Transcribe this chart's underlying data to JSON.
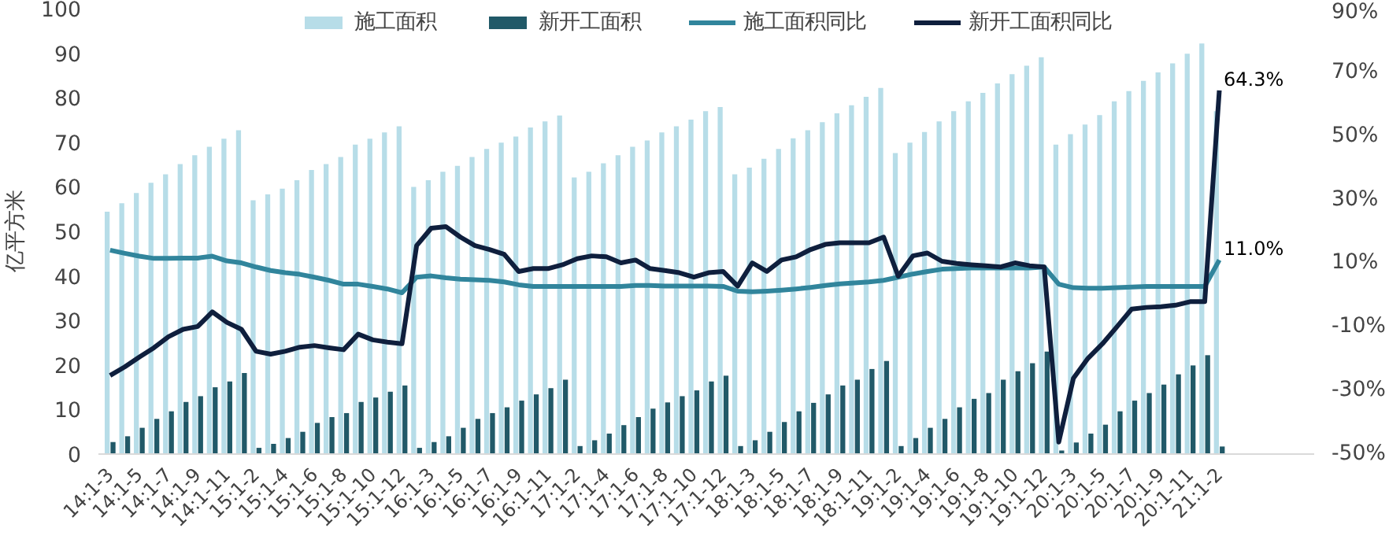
{
  "chart_data": {
    "type": "bar",
    "ylabel": "亿平方米",
    "categories": [
      "14:1-3",
      null,
      "14:1-5",
      null,
      "14:1-7",
      null,
      "14:1-9",
      null,
      "14:1-11",
      null,
      "15:1-2",
      null,
      "15:1-4",
      null,
      "15:1-6",
      null,
      "15:1-8",
      null,
      "15:1-10",
      null,
      "15:1-12",
      null,
      "16:1-3",
      null,
      "16:1-5",
      null,
      "16:1-7",
      null,
      "16:1-9",
      null,
      "16:1-11",
      null,
      "17:1-2",
      null,
      "17:1-4",
      null,
      "17:1-6",
      null,
      "17:1-8",
      null,
      "17:1-10",
      null,
      "17:1-12",
      null,
      "18:1-3",
      null,
      "18:1-5",
      null,
      "18:1-7",
      null,
      "18:1-9",
      null,
      "18:1-11",
      null,
      "19:1-2",
      null,
      "19:1-4",
      null,
      "19:1-6",
      null,
      "19:1-8",
      null,
      "19:1-10",
      null,
      "19:1-12",
      null,
      "20:1-3",
      null,
      "20:1-5",
      null,
      "20:1-7",
      null,
      "20:1-9",
      null,
      "20:1-11",
      null,
      "21:1-2"
    ],
    "series": [
      {
        "name": "施工面积",
        "color": "#b7dde8",
        "values": [
          54.4,
          56.3,
          58.6,
          60.9,
          62.8,
          65.1,
          67.1,
          69.0,
          70.8,
          72.7,
          57.0,
          58.3,
          59.6,
          61.5,
          63.8,
          65.1,
          66.7,
          69.5,
          70.8,
          72.2,
          73.6,
          60.0,
          61.5,
          63.4,
          64.7,
          66.7,
          68.5,
          69.9,
          71.3,
          73.3,
          74.7,
          76.0,
          62.1,
          63.4,
          65.3,
          67.1,
          69.0,
          70.4,
          72.2,
          73.6,
          75.1,
          77.0,
          77.9,
          62.8,
          64.3,
          66.3,
          68.5,
          70.9,
          72.7,
          74.5,
          76.5,
          78.3,
          80.2,
          82.2,
          67.6,
          69.9,
          72.3,
          74.7,
          77.0,
          79.2,
          81.1,
          83.2,
          85.3,
          87.2,
          89.1,
          69.5,
          71.8,
          74.0,
          76.1,
          79.2,
          81.5,
          83.8,
          85.7,
          87.7,
          89.9,
          92.2,
          77.0
        ]
      },
      {
        "name": "新开工面积",
        "color": "#215968",
        "values": [
          2.7,
          4.0,
          5.9,
          7.9,
          9.6,
          11.7,
          13.0,
          15.0,
          16.3,
          18.2,
          1.4,
          2.3,
          3.6,
          5.0,
          7.0,
          8.3,
          9.2,
          11.7,
          12.7,
          14.0,
          15.4,
          1.4,
          2.7,
          4.0,
          5.9,
          7.9,
          9.2,
          10.5,
          12.0,
          13.4,
          14.8,
          16.7,
          1.8,
          3.1,
          4.6,
          6.5,
          8.3,
          10.2,
          11.6,
          13.0,
          14.3,
          16.3,
          17.6,
          1.8,
          3.1,
          5.0,
          7.2,
          9.6,
          11.5,
          13.4,
          15.4,
          16.7,
          19.1,
          20.9,
          1.8,
          3.6,
          5.9,
          7.9,
          10.5,
          12.4,
          13.7,
          16.7,
          18.6,
          20.4,
          23.0,
          0.8,
          2.6,
          4.6,
          6.6,
          9.6,
          12.0,
          13.7,
          15.6,
          17.9,
          19.9,
          22.2,
          1.7
        ]
      },
      {
        "name": "施工面积同比",
        "type": "line",
        "axis": "y2",
        "color": "#31859c",
        "values": [
          14.1,
          13.1,
          12.2,
          11.5,
          11.5,
          11.6,
          11.6,
          12.2,
          10.7,
          10.1,
          8.8,
          7.7,
          7.0,
          6.5,
          5.6,
          4.6,
          3.4,
          3.4,
          2.7,
          1.9,
          0.7,
          5.6,
          6.0,
          5.4,
          5.0,
          4.8,
          4.6,
          4.1,
          3.2,
          2.7,
          2.7,
          2.7,
          2.7,
          2.7,
          2.7,
          2.7,
          3.0,
          3.0,
          2.8,
          2.8,
          2.8,
          2.8,
          2.7,
          1.2,
          1.0,
          1.2,
          1.5,
          1.9,
          2.4,
          3.0,
          3.5,
          3.8,
          4.1,
          4.6,
          5.6,
          6.6,
          7.4,
          8.1,
          8.3,
          8.5,
          8.5,
          8.5,
          8.5,
          8.5,
          8.8,
          3.4,
          2.3,
          2.1,
          2.1,
          2.3,
          2.5,
          2.7,
          2.7,
          2.7,
          2.7,
          2.7,
          11.0
        ],
        "value_labels": [
          null,
          null,
          null,
          null,
          null,
          null,
          null,
          null,
          null,
          null,
          null,
          null,
          null,
          null,
          null,
          null,
          null,
          null,
          null,
          null,
          null,
          null,
          null,
          null,
          null,
          null,
          null,
          null,
          null,
          null,
          null,
          null,
          null,
          null,
          null,
          null,
          null,
          null,
          null,
          null,
          null,
          null,
          null,
          null,
          null,
          null,
          null,
          null,
          null,
          null,
          null,
          null,
          null,
          null,
          null,
          null,
          null,
          null,
          null,
          null,
          null,
          null,
          null,
          null,
          null,
          null,
          null,
          null,
          null,
          null,
          null,
          null,
          null,
          null,
          null,
          null,
          "11.0%"
        ]
      },
      {
        "name": "新开工面积同比",
        "type": "line",
        "axis": "y2",
        "color": "#0f1f3d",
        "values": [
          -25.3,
          -22.6,
          -19.5,
          -16.6,
          -13.1,
          -10.8,
          -9.9,
          -5.3,
          -8.6,
          -10.8,
          -17.7,
          -18.6,
          -17.7,
          -16.4,
          -15.9,
          -16.6,
          -17.2,
          -12.3,
          -14.1,
          -14.8,
          -15.3,
          15.5,
          21.0,
          21.5,
          18.2,
          15.5,
          14.3,
          12.8,
          7.4,
          8.3,
          8.3,
          9.5,
          11.4,
          12.3,
          12.0,
          10.1,
          11.0,
          8.3,
          7.7,
          7.0,
          5.6,
          7.0,
          7.4,
          2.8,
          10.1,
          7.4,
          11.0,
          12.0,
          14.3,
          15.9,
          16.4,
          16.4,
          16.4,
          18.2,
          5.9,
          12.3,
          13.2,
          10.6,
          9.9,
          9.5,
          9.2,
          8.8,
          10.1,
          9.2,
          8.8,
          -46.2,
          -26.2,
          -19.9,
          -15.3,
          -9.9,
          -4.4,
          -3.9,
          -3.7,
          -3.2,
          -2.1,
          -2.1,
          64.3
        ],
        "value_labels": [
          null,
          null,
          null,
          null,
          null,
          null,
          null,
          null,
          null,
          null,
          null,
          null,
          null,
          null,
          null,
          null,
          null,
          null,
          null,
          null,
          null,
          null,
          null,
          null,
          null,
          null,
          null,
          null,
          null,
          null,
          null,
          null,
          null,
          null,
          null,
          null,
          null,
          null,
          null,
          null,
          null,
          null,
          null,
          null,
          null,
          null,
          null,
          null,
          null,
          null,
          null,
          null,
          null,
          null,
          null,
          null,
          null,
          null,
          null,
          null,
          null,
          null,
          null,
          null,
          null,
          null,
          null,
          null,
          null,
          null,
          null,
          null,
          null,
          null,
          null,
          null,
          "64.3%"
        ]
      }
    ],
    "ylim": [
      0,
      100
    ],
    "yticks": [
      0,
      10,
      20,
      30,
      40,
      50,
      60,
      70,
      80,
      90,
      100
    ],
    "y2lim": [
      -50,
      90
    ],
    "y2ticks": [
      {
        "value": -50,
        "label": "-50%"
      },
      {
        "value": -30,
        "label": "-30%"
      },
      {
        "value": -10,
        "label": "-10%"
      },
      {
        "value": 10,
        "label": "10%"
      },
      {
        "value": 30,
        "label": "30%"
      },
      {
        "value": 50,
        "label": "50%"
      },
      {
        "value": 70,
        "label": "70%"
      },
      {
        "value": 90,
        "label": "90%"
      }
    ],
    "legend": "top",
    "grid": false
  }
}
